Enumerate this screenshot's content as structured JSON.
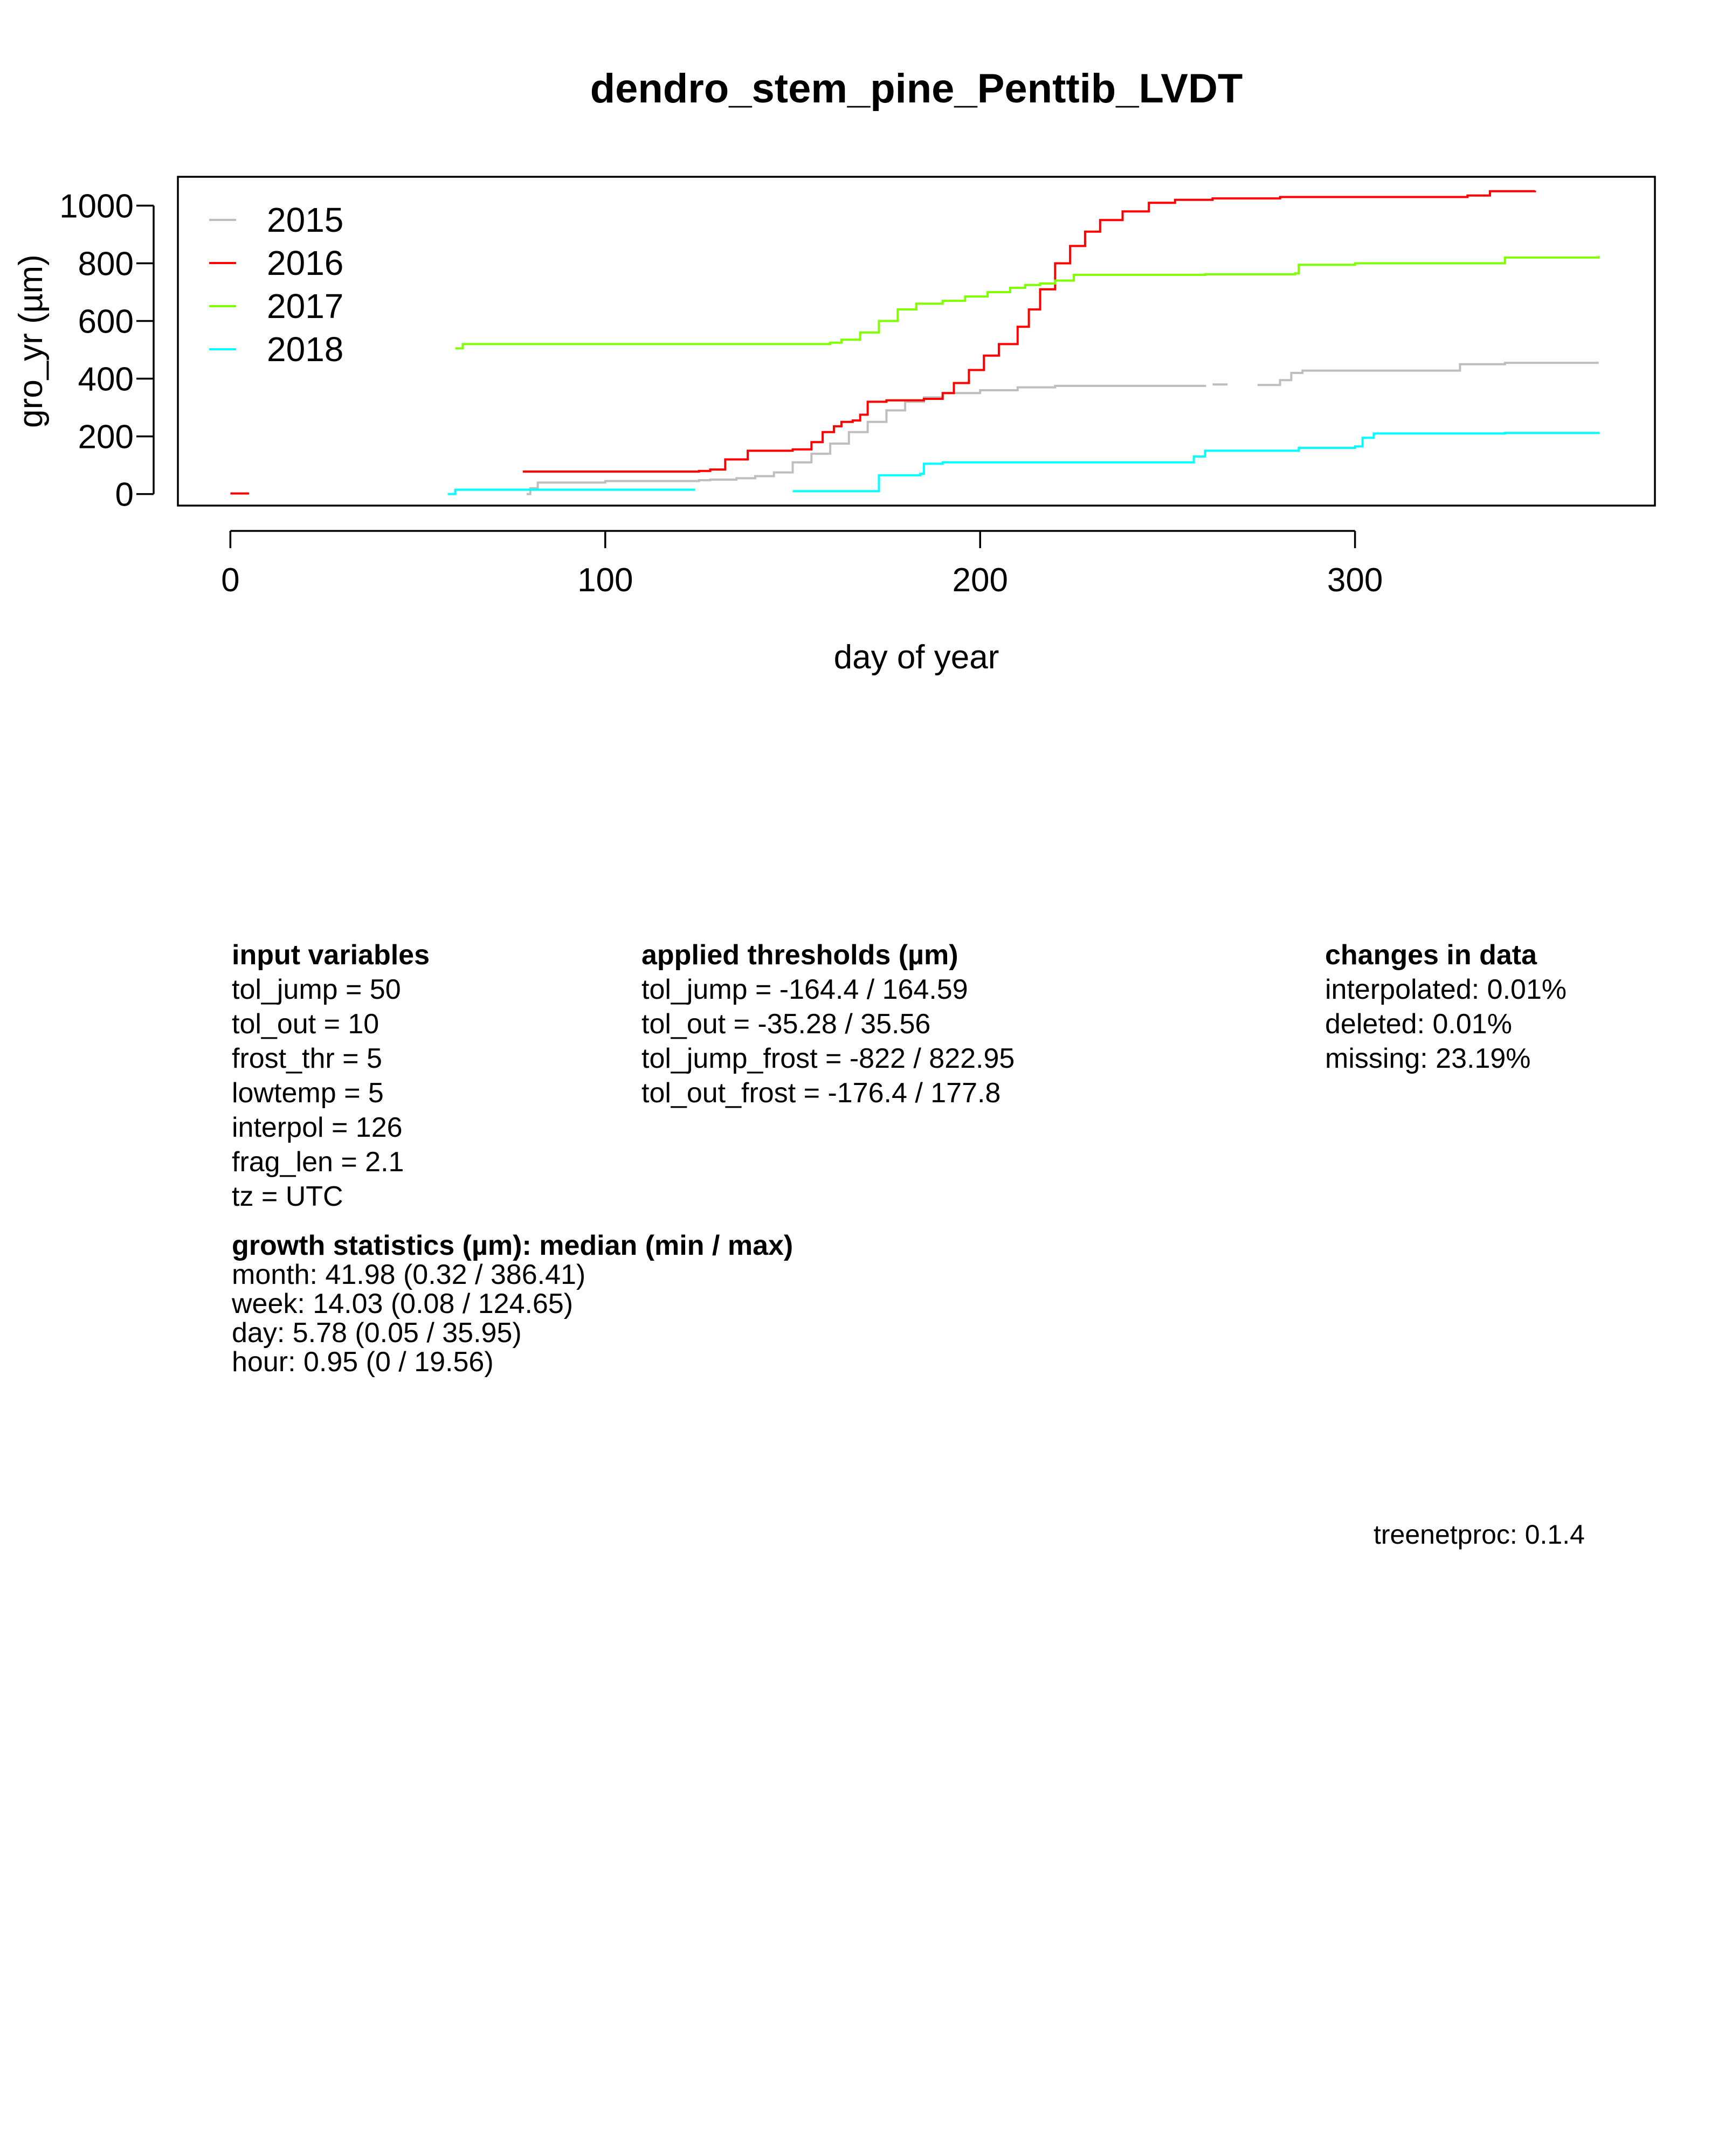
{
  "chart_data": {
    "type": "line",
    "title": "dendro_stem_pine_Penttib_LVDT",
    "xlabel": "day of year",
    "ylabel": "gro_yr (µm)",
    "xlim": [
      -14,
      380
    ],
    "ylim": [
      -40,
      1100
    ],
    "xticks": [
      0,
      100,
      200,
      300
    ],
    "yticks": [
      0,
      200,
      400,
      600,
      800,
      1000
    ],
    "grid": false,
    "legend_position": "top-left",
    "series": [
      {
        "name": "2015",
        "color": "#bebebe",
        "segments": [
          [
            [
              79,
              0
            ],
            [
              80,
              20
            ],
            [
              82,
              40
            ],
            [
              100,
              45
            ],
            [
              125,
              48
            ],
            [
              128,
              50
            ],
            [
              135,
              55
            ],
            [
              140,
              62
            ],
            [
              145,
              75
            ],
            [
              150,
              110
            ],
            [
              155,
              140
            ],
            [
              160,
              175
            ],
            [
              165,
              215
            ],
            [
              170,
              250
            ],
            [
              175,
              290
            ],
            [
              180,
              320
            ],
            [
              185,
              335
            ],
            [
              190,
              350
            ],
            [
              200,
              360
            ],
            [
              210,
              370
            ],
            [
              220,
              375
            ],
            [
              260,
              378
            ]
          ],
          [
            [
              262,
              380
            ],
            [
              266,
              380
            ]
          ],
          [
            [
              274,
              378
            ],
            [
              278,
              378
            ],
            [
              280,
              395
            ],
            [
              283,
              420
            ],
            [
              286,
              428
            ],
            [
              325,
              428
            ],
            [
              328,
              450
            ],
            [
              340,
              455
            ],
            [
              365,
              455
            ]
          ]
        ]
      },
      {
        "name": "2016",
        "color": "#ff0000",
        "segments": [
          [
            [
              0,
              2
            ],
            [
              5,
              2
            ]
          ],
          [
            [
              78,
              78
            ],
            [
              105,
              78
            ],
            [
              125,
              80
            ],
            [
              128,
              85
            ],
            [
              132,
              120
            ],
            [
              138,
              150
            ],
            [
              150,
              155
            ],
            [
              155,
              180
            ],
            [
              158,
              215
            ],
            [
              161,
              235
            ],
            [
              163,
              250
            ],
            [
              166,
              255
            ],
            [
              168,
              275
            ],
            [
              170,
              320
            ],
            [
              175,
              325
            ],
            [
              185,
              330
            ],
            [
              190,
              350
            ],
            [
              193,
              385
            ],
            [
              197,
              430
            ],
            [
              201,
              480
            ],
            [
              205,
              520
            ],
            [
              210,
              580
            ],
            [
              213,
              640
            ],
            [
              216,
              710
            ],
            [
              220,
              800
            ],
            [
              224,
              860
            ],
            [
              228,
              910
            ],
            [
              232,
              950
            ],
            [
              238,
              980
            ],
            [
              245,
              1010
            ],
            [
              252,
              1020
            ],
            [
              262,
              1025
            ],
            [
              280,
              1030
            ],
            [
              300,
              1030
            ],
            [
              330,
              1035
            ],
            [
              336,
              1050
            ],
            [
              348,
              1052
            ]
          ]
        ]
      },
      {
        "name": "2017",
        "color": "#7fff00",
        "segments": [
          [
            [
              60,
              505
            ],
            [
              62,
              520
            ],
            [
              70,
              520
            ],
            [
              150,
              520
            ],
            [
              160,
              525
            ],
            [
              163,
              535
            ],
            [
              168,
              560
            ],
            [
              173,
              600
            ],
            [
              178,
              640
            ],
            [
              183,
              660
            ],
            [
              190,
              670
            ],
            [
              196,
              685
            ],
            [
              202,
              700
            ],
            [
              208,
              715
            ],
            [
              212,
              725
            ],
            [
              216,
              730
            ],
            [
              220,
              740
            ],
            [
              225,
              760
            ],
            [
              260,
              762
            ],
            [
              284,
              765
            ],
            [
              285,
              795
            ],
            [
              300,
              800
            ],
            [
              340,
              820
            ],
            [
              365,
              825
            ]
          ]
        ]
      },
      {
        "name": "2018",
        "color": "#00ffff",
        "segments": [
          [
            [
              58,
              0
            ],
            [
              60,
              15
            ],
            [
              124,
              15
            ]
          ],
          [
            [
              150,
              10
            ],
            [
              172,
              10
            ],
            [
              173,
              65
            ],
            [
              184,
              70
            ],
            [
              185,
              105
            ],
            [
              190,
              110
            ],
            [
              255,
              110
            ],
            [
              257,
              130
            ],
            [
              260,
              150
            ],
            [
              270,
              150
            ],
            [
              285,
              160
            ],
            [
              300,
              165
            ],
            [
              302,
              195
            ],
            [
              305,
              210
            ],
            [
              340,
              212
            ],
            [
              365,
              215
            ]
          ]
        ]
      }
    ]
  },
  "input_variables": {
    "heading": "input variables",
    "lines": [
      "tol_jump = 50",
      "tol_out = 10",
      "frost_thr = 5",
      "lowtemp = 5",
      "interpol = 126",
      "frag_len = 2.1",
      "tz = UTC"
    ]
  },
  "applied_thresholds": {
    "heading": "applied thresholds (µm)",
    "lines": [
      "tol_jump = -164.4 / 164.59",
      "tol_out = -35.28 / 35.56",
      "tol_jump_frost = -822 / 822.95",
      "tol_out_frost = -176.4 / 177.8"
    ]
  },
  "changes_in_data": {
    "heading": "changes in data",
    "lines": [
      "interpolated: 0.01%",
      "deleted: 0.01%",
      "missing: 23.19%"
    ]
  },
  "growth_statistics": {
    "heading": "growth statistics (µm): median (min / max)",
    "lines": [
      "month: 41.98 (0.32 / 386.41)",
      "week: 14.03 (0.08 / 124.65)",
      "day: 5.78 (0.05 / 35.95)",
      "hour: 0.95 (0 / 19.56)"
    ]
  },
  "version": "treenetproc: 0.1.4"
}
